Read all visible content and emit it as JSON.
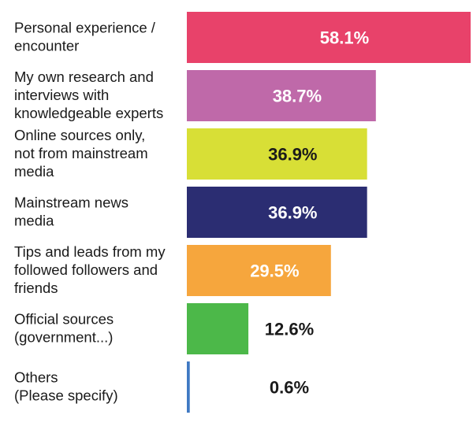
{
  "chart_data": {
    "type": "bar",
    "orientation": "horizontal",
    "grid": false,
    "categories": [
      "Personal experience / encounter",
      "My own research and interviews with knowledgeable experts",
      "Online sources only, not from mainstream media",
      "Mainstream news media",
      "Tips and leads from my followed followers and friends",
      "Official sources (government...)",
      "Others (Please specify)"
    ],
    "category_lines": [
      [
        "Personal experience /",
        "encounter"
      ],
      [
        "My own research and",
        "interviews with",
        "knowledgeable experts"
      ],
      [
        "Online sources only,",
        "not from mainstream",
        "media"
      ],
      [
        "Mainstream news",
        "media"
      ],
      [
        "Tips and leads from my",
        "followed followers and",
        "friends"
      ],
      [
        "Official sources",
        "(government...)"
      ],
      [
        "Others",
        "(Please specify)"
      ]
    ],
    "values": [
      58.1,
      38.7,
      36.9,
      36.9,
      29.5,
      12.6,
      0.6
    ],
    "value_labels": [
      "58.1%",
      "38.7%",
      "36.9%",
      "36.9%",
      "29.5%",
      "12.6%",
      "0.6%"
    ],
    "bar_colors": [
      "#e8426a",
      "#bf69a9",
      "#d8df36",
      "#2b2d72",
      "#f6a63d",
      "#4cb849",
      "#3f79c3"
    ],
    "label_colors": [
      "#ffffff",
      "#ffffff",
      "#1a1a1a",
      "#ffffff",
      "#ffffff",
      "#1a1a1a",
      "#1a1a1a"
    ],
    "label_position": [
      "inside",
      "inside",
      "inside",
      "inside",
      "inside",
      "outside",
      "outside"
    ]
  }
}
